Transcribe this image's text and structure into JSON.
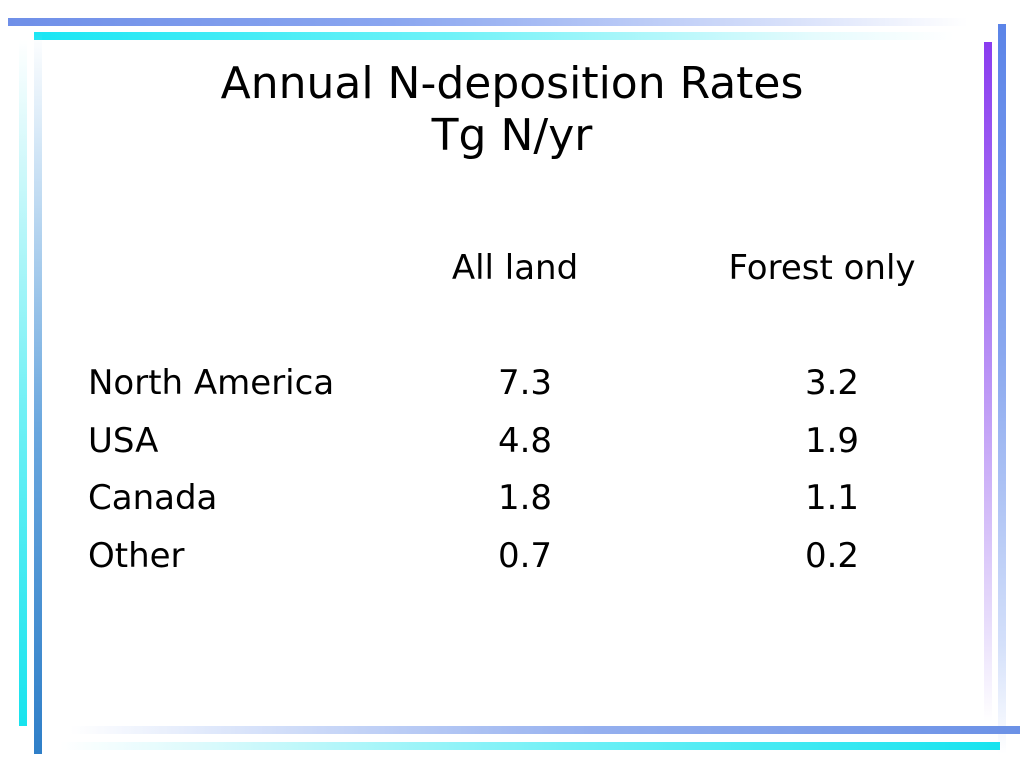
{
  "slide": {
    "title_line1": "Annual N-deposition Rates",
    "title_line2": "Tg N/yr"
  },
  "table": {
    "headers": [
      "All land",
      "Forest only"
    ],
    "rows": [
      {
        "label": "North America",
        "all_land": "7.3",
        "forest_only": "3.2"
      },
      {
        "label": "USA",
        "all_land": "4.8",
        "forest_only": "1.9"
      },
      {
        "label": "Canada",
        "all_land": "1.8",
        "forest_only": "1.1"
      },
      {
        "label": "Other",
        "all_land": "0.7",
        "forest_only": "0.2"
      }
    ]
  },
  "theme": {
    "bar_blue": "#6f8fe8",
    "bar_cyan": "#19e6f4",
    "bar_purple": "#8a3cf0",
    "text": "#000000",
    "background": "#ffffff"
  }
}
